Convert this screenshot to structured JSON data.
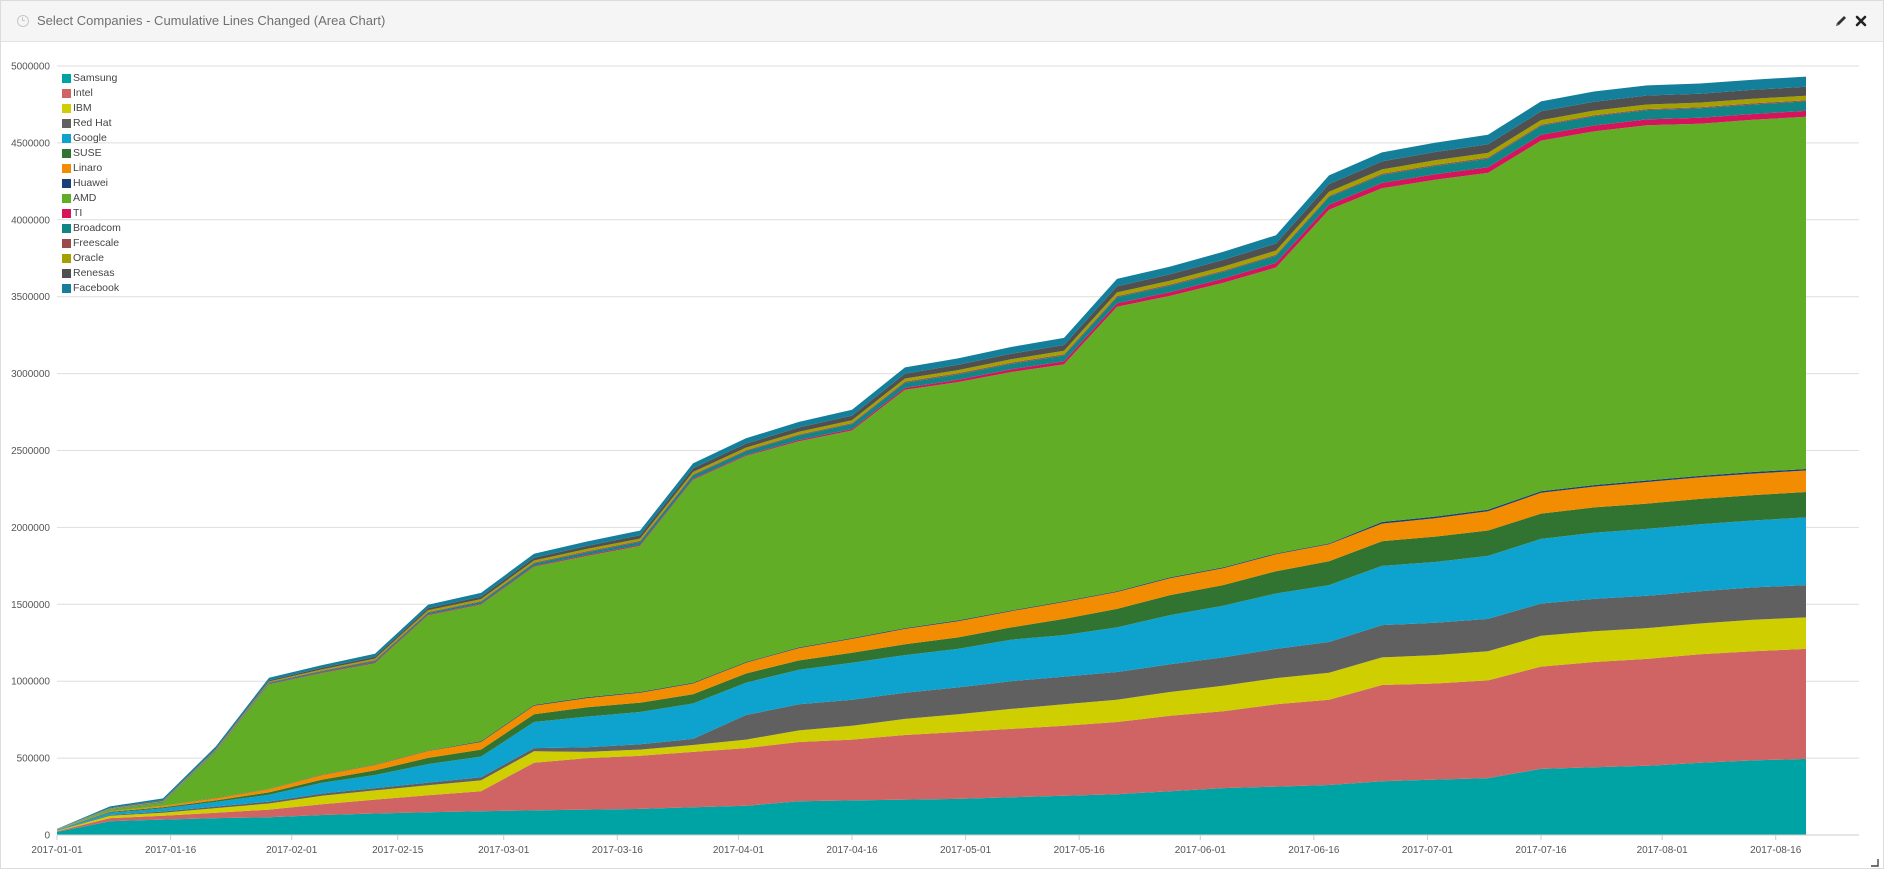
{
  "panel": {
    "title": "Select Companies - Cumulative Lines Changed (Area Chart)",
    "icons": [
      "clock-icon",
      "pencil-icon",
      "close-icon",
      "resize-icon"
    ]
  },
  "chart_data": {
    "type": "area",
    "stacked": true,
    "title": "Select Companies - Cumulative Lines Changed (Area Chart)",
    "xlabel": "",
    "ylabel": "",
    "ylim": [
      0,
      5000000
    ],
    "grid": true,
    "legend_position": "top-left",
    "y_ticks": [
      "0",
      "500000",
      "1000000",
      "1500000",
      "2000000",
      "2500000",
      "3000000",
      "3500000",
      "4000000",
      "4500000",
      "5000000"
    ],
    "x_ticks": [
      "2017-01-01",
      "2017-01-16",
      "2017-02-01",
      "2017-02-15",
      "2017-03-01",
      "2017-03-16",
      "2017-04-01",
      "2017-04-16",
      "2017-05-01",
      "2017-05-16",
      "2017-06-01",
      "2017-06-16",
      "2017-07-01",
      "2017-07-16",
      "2017-08-01",
      "2017-08-16"
    ],
    "x": [
      "2017-01-01",
      "2017-01-08",
      "2017-01-15",
      "2017-01-22",
      "2017-01-29",
      "2017-02-05",
      "2017-02-12",
      "2017-02-19",
      "2017-02-26",
      "2017-03-05",
      "2017-03-12",
      "2017-03-19",
      "2017-03-26",
      "2017-04-02",
      "2017-04-09",
      "2017-04-16",
      "2017-04-23",
      "2017-04-30",
      "2017-05-07",
      "2017-05-14",
      "2017-05-21",
      "2017-05-28",
      "2017-06-04",
      "2017-06-11",
      "2017-06-18",
      "2017-06-25",
      "2017-07-02",
      "2017-07-09",
      "2017-07-16",
      "2017-07-23",
      "2017-07-30",
      "2017-08-06",
      "2017-08-13",
      "2017-08-20"
    ],
    "series": [
      {
        "name": "Samsung",
        "color": "#00a3a3",
        "values": [
          20000,
          90000,
          100000,
          110000,
          115000,
          130000,
          140000,
          148000,
          155000,
          160000,
          165000,
          170000,
          180000,
          190000,
          220000,
          225000,
          230000,
          235000,
          245000,
          255000,
          265000,
          285000,
          305000,
          315000,
          325000,
          350000,
          360000,
          370000,
          430000,
          440000,
          450000,
          470000,
          485000,
          495000
        ]
      },
      {
        "name": "Intel",
        "color": "#d06464",
        "values": [
          5000,
          20000,
          25000,
          35000,
          50000,
          70000,
          90000,
          110000,
          130000,
          310000,
          335000,
          345000,
          360000,
          375000,
          385000,
          395000,
          420000,
          435000,
          445000,
          455000,
          470000,
          490000,
          500000,
          535000,
          555000,
          625000,
          625000,
          635000,
          665000,
          685000,
          695000,
          705000,
          710000,
          715000
        ]
      },
      {
        "name": "IBM",
        "color": "#cfce00",
        "values": [
          3000,
          15000,
          20000,
          30000,
          40000,
          55000,
          60000,
          65000,
          70000,
          75000,
          40000,
          40000,
          45000,
          55000,
          75000,
          90000,
          105000,
          115000,
          130000,
          140000,
          145000,
          155000,
          165000,
          170000,
          175000,
          180000,
          185000,
          190000,
          200000,
          200000,
          200000,
          200000,
          205000,
          205000
        ]
      },
      {
        "name": "Red Hat",
        "color": "#606060",
        "values": [
          1000,
          5000,
          8000,
          10000,
          12000,
          15000,
          15000,
          18000,
          20000,
          20000,
          30000,
          35000,
          40000,
          160000,
          170000,
          170000,
          170000,
          175000,
          180000,
          180000,
          180000,
          180000,
          185000,
          190000,
          200000,
          210000,
          210000,
          210000,
          210000,
          210000,
          210000,
          210000,
          210000,
          210000
        ]
      },
      {
        "name": "Google",
        "color": "#0ea2cf",
        "values": [
          4000,
          15000,
          20000,
          30000,
          45000,
          70000,
          85000,
          120000,
          135000,
          170000,
          200000,
          210000,
          230000,
          210000,
          225000,
          240000,
          245000,
          250000,
          270000,
          270000,
          290000,
          320000,
          335000,
          360000,
          370000,
          385000,
          395000,
          410000,
          420000,
          430000,
          435000,
          435000,
          435000,
          440000
        ]
      },
      {
        "name": "SUSE",
        "color": "#317331",
        "values": [
          1000,
          5000,
          8000,
          10000,
          15000,
          20000,
          30000,
          40000,
          45000,
          50000,
          60000,
          60000,
          60000,
          60000,
          60000,
          65000,
          70000,
          75000,
          80000,
          105000,
          120000,
          130000,
          135000,
          145000,
          155000,
          160000,
          165000,
          165000,
          165000,
          165000,
          165000,
          165000,
          165000,
          165000
        ]
      },
      {
        "name": "Linaro",
        "color": "#f28c00",
        "values": [
          2000,
          5000,
          8000,
          15000,
          20000,
          30000,
          35000,
          45000,
          50000,
          55000,
          60000,
          65000,
          70000,
          70000,
          80000,
          90000,
          100000,
          105000,
          105000,
          110000,
          110000,
          110000,
          110000,
          110000,
          110000,
          115000,
          120000,
          125000,
          135000,
          135000,
          140000,
          140000,
          140000,
          140000
        ]
      },
      {
        "name": "Huawei",
        "color": "#1a3e7a",
        "values": [
          500,
          1000,
          1000,
          2000,
          2000,
          3000,
          3000,
          3000,
          4000,
          5000,
          5000,
          5000,
          5000,
          5000,
          5000,
          5000,
          5000,
          5000,
          5000,
          5000,
          5000,
          5000,
          5000,
          5000,
          5000,
          10000,
          10000,
          10000,
          10000,
          10000,
          10000,
          10000,
          10000,
          10000
        ]
      },
      {
        "name": "AMD",
        "color": "#61ad25",
        "values": [
          0,
          10000,
          20000,
          300000,
          680000,
          660000,
          660000,
          880000,
          890000,
          900000,
          920000,
          950000,
          1320000,
          1340000,
          1340000,
          1350000,
          1550000,
          1550000,
          1550000,
          1540000,
          1850000,
          1830000,
          1850000,
          1860000,
          2170000,
          2170000,
          2190000,
          2190000,
          2280000,
          2300000,
          2310000,
          2290000,
          2290000,
          2290000
        ]
      },
      {
        "name": "TI",
        "color": "#d6145c",
        "values": [
          300,
          500,
          1000,
          2000,
          3000,
          4000,
          5000,
          5000,
          5000,
          5000,
          6000,
          6000,
          6000,
          6000,
          8000,
          10000,
          12000,
          15000,
          18000,
          20000,
          22000,
          25000,
          28000,
          30000,
          33000,
          35000,
          36000,
          37000,
          38000,
          38000,
          38000,
          38000,
          38000,
          38000
        ]
      },
      {
        "name": "Broadcom",
        "color": "#118585",
        "values": [
          200,
          3000,
          5000,
          6000,
          7000,
          8000,
          9000,
          10000,
          12000,
          15000,
          18000,
          20000,
          22000,
          25000,
          30000,
          32000,
          34000,
          35000,
          36000,
          38000,
          40000,
          42000,
          44000,
          46000,
          50000,
          52000,
          54000,
          56000,
          58000,
          60000,
          60000,
          62000,
          62000,
          62000
        ]
      },
      {
        "name": "Freescale",
        "color": "#9a4a4a",
        "values": [
          500,
          1500,
          2000,
          3000,
          4000,
          4000,
          5000,
          5000,
          5000,
          6000,
          6000,
          6000,
          6000,
          6000,
          6000,
          6000,
          7000,
          7000,
          7000,
          7000,
          7000,
          7000,
          7000,
          7000,
          7000,
          7000,
          7000,
          7000,
          7000,
          7000,
          7000,
          7000,
          7000,
          7000
        ]
      },
      {
        "name": "Oracle",
        "color": "#a3a000",
        "values": [
          500,
          2000,
          3000,
          4000,
          5000,
          8000,
          10000,
          12000,
          13000,
          14000,
          15000,
          15000,
          16000,
          17000,
          18000,
          19000,
          20000,
          21000,
          22000,
          23000,
          24000,
          25000,
          26000,
          27000,
          28000,
          29000,
          30000,
          30000,
          30000,
          30000,
          30000,
          30000,
          30000,
          30000
        ]
      },
      {
        "name": "Renesas",
        "color": "#505050",
        "values": [
          500,
          3000,
          5000,
          6000,
          8000,
          10000,
          12000,
          14000,
          16000,
          18000,
          20000,
          22000,
          24000,
          26000,
          28000,
          30000,
          32000,
          34000,
          36000,
          38000,
          40000,
          42000,
          44000,
          46000,
          50000,
          52000,
          54000,
          56000,
          58000,
          58000,
          58000,
          58000,
          58000,
          58000
        ]
      },
      {
        "name": "Facebook",
        "color": "#137f9a",
        "values": [
          1000,
          10000,
          12000,
          14000,
          16000,
          18000,
          20000,
          22000,
          24000,
          26000,
          28000,
          30000,
          32000,
          34000,
          36000,
          38000,
          40000,
          42000,
          44000,
          46000,
          48000,
          50000,
          52000,
          54000,
          56000,
          58000,
          60000,
          62000,
          64000,
          66000,
          66000,
          66000,
          66000,
          66000
        ]
      }
    ]
  }
}
